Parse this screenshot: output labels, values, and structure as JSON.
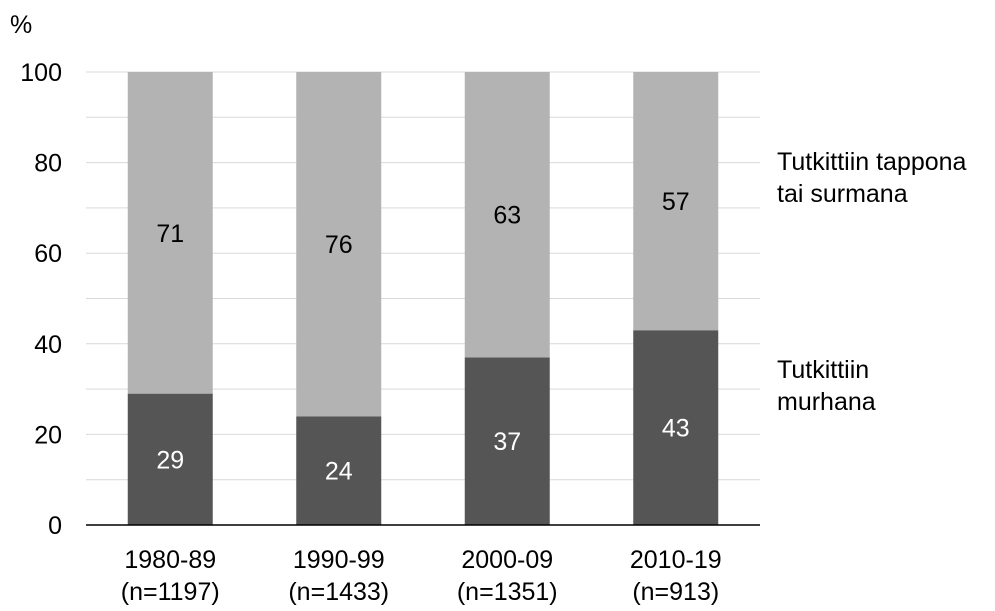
{
  "chart_data": {
    "type": "bar",
    "stacked": true,
    "percent_stacked": true,
    "y_unit": "%",
    "ylim": [
      0,
      100
    ],
    "yticks": [
      0,
      20,
      40,
      60,
      80,
      100
    ],
    "grid": true,
    "categories": [
      [
        "1980-89",
        "(n=1197)"
      ],
      [
        "1990-99",
        "(n=1433)"
      ],
      [
        "2000-09",
        "(n=1351)"
      ],
      [
        "2010-19",
        "(n=913)"
      ]
    ],
    "series": [
      {
        "name": [
          "Tutkittiin",
          "murhana"
        ],
        "values": [
          29,
          24,
          37,
          43
        ],
        "color": "#555555",
        "label_color": "#ffffff"
      },
      {
        "name": [
          "Tutkittiin tappona",
          "tai surmana"
        ],
        "values": [
          71,
          76,
          63,
          57
        ],
        "color": "#b3b3b3",
        "label_color": "#000000"
      }
    ],
    "legend_placement": "right",
    "gridline_color": "#d9d9d9"
  }
}
